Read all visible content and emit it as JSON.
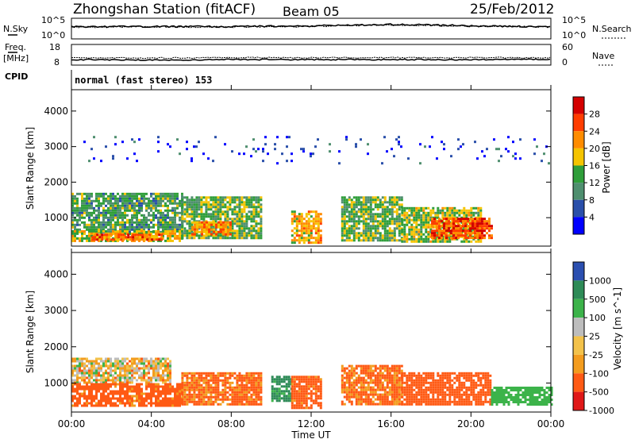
{
  "header": {
    "station": "Zhongshan Station (fitACF)",
    "beam": "Beam 05",
    "date": "25/Feb/2012"
  },
  "noise_panel": {
    "left_label": "N.Sky",
    "right_label": "N.Search",
    "tick_top": "10^5",
    "tick_bottom": "10^0"
  },
  "freq_panel": {
    "left_label_1": "Freq.",
    "left_label_2": "[MHz]",
    "right_label": "Nave",
    "left_tick_top": "18",
    "left_tick_bottom": "8",
    "right_tick_top": "60",
    "right_tick_bottom": "0"
  },
  "cpid": {
    "label": "CPID",
    "value": "normal (fast stereo) 153"
  },
  "x_axis": {
    "label": "Time UT",
    "ticks": [
      "00:00",
      "04:00",
      "08:00",
      "12:00",
      "16:00",
      "20:00",
      "00:00"
    ]
  },
  "power_colorbar": {
    "label": "Power [dB]",
    "ticks": [
      "28",
      "24",
      "20",
      "16",
      "12",
      "8",
      "4"
    ],
    "colors": [
      "#d40000",
      "#ff3d00",
      "#ff8c00",
      "#f5c400",
      "#2f9e3a",
      "#4f8f6f",
      "#2a4faa",
      "#0000ff"
    ]
  },
  "velocity_colorbar": {
    "label": "Velocity [m s^-1]",
    "ticks": [
      "1000",
      "500",
      "100",
      "25",
      "-25",
      "-100",
      "-500",
      "-1000"
    ],
    "colors": [
      "#2b4fb0",
      "#2e8b57",
      "#3cb34a",
      "#bdbdbd",
      "#f3c24a",
      "#f39c1e",
      "#ff5a14",
      "#e01818"
    ]
  },
  "chart_data": [
    {
      "type": "line",
      "title": "N.Sky / N.Search",
      "x": [
        "00:00",
        "04:00",
        "08:00",
        "12:00",
        "16:00",
        "20:00",
        "00:00"
      ],
      "series": [
        {
          "name": "N.Sky",
          "values": [
            1800,
            2000,
            1900,
            3000,
            8000,
            3000,
            1700
          ]
        },
        {
          "name": "N.Search",
          "values": [
            1500,
            1600,
            1600,
            2500,
            6000,
            2600,
            1500
          ]
        }
      ],
      "ylim": [
        1,
        100000
      ],
      "log_scale": true
    },
    {
      "type": "line",
      "title": "Freq. [MHz] / Nave",
      "x": [
        "00:00",
        "04:00",
        "08:00",
        "12:00",
        "16:00",
        "20:00",
        "00:00"
      ],
      "series": [
        {
          "name": "Freq.",
          "values": [
            10.5,
            10.2,
            10.5,
            10.5,
            10.5,
            10.5,
            10.5
          ]
        },
        {
          "name": "Nave",
          "values": [
            21,
            20,
            21,
            21,
            21,
            21,
            21
          ]
        }
      ],
      "ylim": [
        8,
        18
      ]
    },
    {
      "type": "heatmap",
      "title": "Power [dB]",
      "xlabel": "Time UT",
      "ylabel": "Slant Range [km]",
      "xlim_hours": [
        0,
        24
      ],
      "ylim": [
        200,
        4600
      ],
      "y_ticks": [
        1000,
        2000,
        3000,
        4000
      ],
      "colorbar_range": [
        0,
        32
      ],
      "regions": [
        {
          "t": [
            0.0,
            5.5
          ],
          "r": [
            600,
            1700
          ],
          "value": 14
        },
        {
          "t": [
            0.0,
            5.5
          ],
          "r": [
            350,
            650
          ],
          "value": 20
        },
        {
          "t": [
            1.0,
            4.5
          ],
          "r": [
            400,
            550
          ],
          "value": 26
        },
        {
          "t": [
            5.5,
            9.5
          ],
          "r": [
            400,
            1600
          ],
          "value": 16
        },
        {
          "t": [
            6.0,
            8.0
          ],
          "r": [
            550,
            900
          ],
          "value": 24
        },
        {
          "t": [
            11.0,
            12.5
          ],
          "r": [
            300,
            1200
          ],
          "value": 22
        },
        {
          "t": [
            13.5,
            16.5
          ],
          "r": [
            350,
            1600
          ],
          "value": 16
        },
        {
          "t": [
            16.5,
            20.5
          ],
          "r": [
            350,
            1300
          ],
          "value": 18
        },
        {
          "t": [
            18.0,
            21.0
          ],
          "r": [
            400,
            1000
          ],
          "value": 28
        },
        {
          "t": [
            0.0,
            24.0
          ],
          "r": [
            2500,
            3300
          ],
          "value": 6
        }
      ]
    },
    {
      "type": "heatmap",
      "title": "Velocity [m s^-1]",
      "xlabel": "Time UT",
      "ylabel": "Slant Range [km]",
      "xlim_hours": [
        0,
        24
      ],
      "ylim": [
        200,
        4600
      ],
      "y_ticks": [
        1000,
        2000,
        3000,
        4000
      ],
      "colorbar_range": [
        -1000,
        1000
      ],
      "regions": [
        {
          "t": [
            0.0,
            5.0
          ],
          "r": [
            1000,
            1700
          ],
          "value": 0
        },
        {
          "t": [
            0.0,
            5.5
          ],
          "r": [
            400,
            1000
          ],
          "value": -200
        },
        {
          "t": [
            5.5,
            9.5
          ],
          "r": [
            400,
            1300
          ],
          "value": -150
        },
        {
          "t": [
            10.0,
            11.0
          ],
          "r": [
            500,
            1200
          ],
          "value": 600
        },
        {
          "t": [
            11.0,
            12.5
          ],
          "r": [
            300,
            1200
          ],
          "value": -200
        },
        {
          "t": [
            13.5,
            16.5
          ],
          "r": [
            400,
            1500
          ],
          "value": -150
        },
        {
          "t": [
            16.5,
            21.0
          ],
          "r": [
            400,
            1300
          ],
          "value": -250
        },
        {
          "t": [
            21.0,
            24.0
          ],
          "r": [
            400,
            900
          ],
          "value": 300
        }
      ]
    }
  ]
}
